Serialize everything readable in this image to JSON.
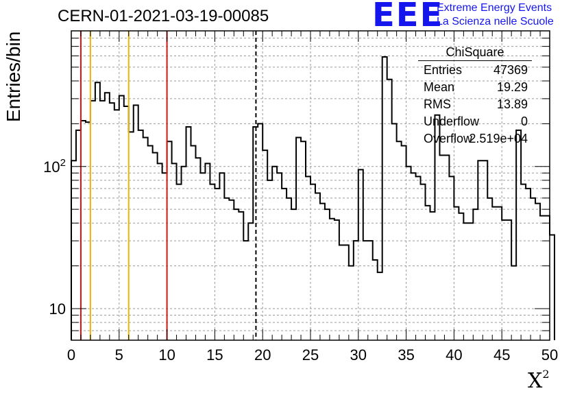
{
  "title": "CERN-01-2021-03-19-00085",
  "logo": {
    "mark": "EEE",
    "line1": "Extreme Energy Events",
    "line2": "La Scienza nelle Scuole"
  },
  "stats": {
    "title": "ChiSquare",
    "rows": [
      {
        "label": "Entries",
        "value": "47369"
      },
      {
        "label": "Mean",
        "value": "19.29"
      },
      {
        "label": "RMS",
        "value": "13.89"
      },
      {
        "label": "Underflow",
        "value": "0"
      },
      {
        "label": "Overflow",
        "value": "2.519e+04"
      }
    ]
  },
  "colors": {
    "red_lines": "#dd1111",
    "yellow_lines": "#f0b400",
    "histogram": "#000000",
    "logo": "#1515ee"
  },
  "chart_data": {
    "type": "histogram",
    "xlabel": "X²",
    "ylabel": "Entries/bin",
    "xlim": [
      0,
      50
    ],
    "ylim": [
      6,
      900
    ],
    "yscale": "log",
    "grid": true,
    "bin_width": 0.5,
    "xticks": [
      "0",
      "5",
      "10",
      "15",
      "20",
      "25",
      "30",
      "35",
      "40",
      "45",
      "50"
    ],
    "yticks": [
      {
        "value": 10,
        "label": "10"
      },
      {
        "value": 100,
        "label": "10²"
      }
    ],
    "values": [
      110,
      180,
      210,
      205,
      290,
      390,
      290,
      330,
      280,
      250,
      315,
      265,
      175,
      270,
      180,
      160,
      140,
      125,
      105,
      90,
      150,
      105,
      75,
      100,
      190,
      140,
      115,
      90,
      105,
      75,
      70,
      90,
      60,
      58,
      50,
      48,
      30,
      40,
      190,
      200,
      130,
      80,
      100,
      90,
      70,
      60,
      50,
      160,
      150,
      85,
      75,
      65,
      55,
      50,
      43,
      42,
      28,
      28,
      20,
      30,
      95,
      30,
      30,
      22,
      18,
      590,
      410,
      200,
      150,
      140,
      100,
      90,
      85,
      75,
      53,
      48,
      230,
      120,
      120,
      85,
      52,
      47,
      40,
      40,
      50,
      110,
      110,
      60,
      52,
      52,
      42,
      42,
      20,
      180,
      75,
      70,
      60,
      55,
      45,
      45,
      33
    ],
    "vlines": [
      {
        "x": 1.0,
        "color": "red",
        "style": "solid"
      },
      {
        "x": 2.0,
        "color": "yellow",
        "style": "solid"
      },
      {
        "x": 6.0,
        "color": "yellow",
        "style": "solid"
      },
      {
        "x": 10.0,
        "color": "red",
        "style": "solid"
      },
      {
        "x": 19.3,
        "color": "black",
        "style": "dashed"
      }
    ]
  }
}
